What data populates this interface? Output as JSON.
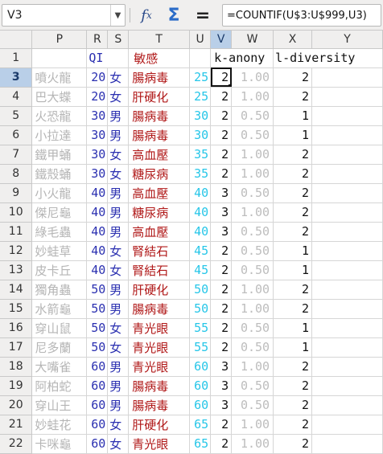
{
  "formula_bar": {
    "name_box": "V3",
    "name_box_dropdown_icon": "chevron-down-icon",
    "function_wizard_icon": "fx-icon",
    "sum_icon": "sigma-icon",
    "equals_icon": "equals-icon",
    "formula": "=COUNTIF(U$3:U$999,U3)"
  },
  "columns": [
    "P",
    "R",
    "S",
    "T",
    "U",
    "V",
    "W",
    "X",
    "Y"
  ],
  "selected_column": "V",
  "header_row": {
    "row": "1",
    "qi": "QI",
    "sensitive": "敏感",
    "k": "k-anony",
    "l": "l-diversity"
  },
  "selected_row": "3",
  "rows": [
    {
      "row": "3",
      "P": "噴火龍",
      "R": "20",
      "S": "女",
      "T": "腸病毒",
      "U": "25",
      "V": "2",
      "W": "1.00",
      "X": "2"
    },
    {
      "row": "4",
      "P": "巴大蝶",
      "R": "20",
      "S": "女",
      "T": "肝硬化",
      "U": "25",
      "V": "2",
      "W": "1.00",
      "X": "2"
    },
    {
      "row": "5",
      "P": "火恐龍",
      "R": "30",
      "S": "男",
      "T": "腸病毒",
      "U": "30",
      "V": "2",
      "W": "0.50",
      "X": "1"
    },
    {
      "row": "6",
      "P": "小拉達",
      "R": "30",
      "S": "男",
      "T": "腸病毒",
      "U": "30",
      "V": "2",
      "W": "0.50",
      "X": "1"
    },
    {
      "row": "7",
      "P": "鐵甲蛹",
      "R": "30",
      "S": "女",
      "T": "高血壓",
      "U": "35",
      "V": "2",
      "W": "1.00",
      "X": "2"
    },
    {
      "row": "8",
      "P": "鐵殼蛹",
      "R": "30",
      "S": "女",
      "T": "糖尿病",
      "U": "35",
      "V": "2",
      "W": "1.00",
      "X": "2"
    },
    {
      "row": "9",
      "P": "小火龍",
      "R": "40",
      "S": "男",
      "T": "高血壓",
      "U": "40",
      "V": "3",
      "W": "0.50",
      "X": "2"
    },
    {
      "row": "10",
      "P": "傑尼龜",
      "R": "40",
      "S": "男",
      "T": "糖尿病",
      "U": "40",
      "V": "3",
      "W": "1.00",
      "X": "2"
    },
    {
      "row": "11",
      "P": "綠毛蟲",
      "R": "40",
      "S": "男",
      "T": "高血壓",
      "U": "40",
      "V": "3",
      "W": "0.50",
      "X": "2"
    },
    {
      "row": "12",
      "P": "妙蛙草",
      "R": "40",
      "S": "女",
      "T": "腎結石",
      "U": "45",
      "V": "2",
      "W": "0.50",
      "X": "1"
    },
    {
      "row": "13",
      "P": "皮卡丘",
      "R": "40",
      "S": "女",
      "T": "腎結石",
      "U": "45",
      "V": "2",
      "W": "0.50",
      "X": "1"
    },
    {
      "row": "14",
      "P": "獨角蟲",
      "R": "50",
      "S": "男",
      "T": "肝硬化",
      "U": "50",
      "V": "2",
      "W": "1.00",
      "X": "2"
    },
    {
      "row": "15",
      "P": "水箭龜",
      "R": "50",
      "S": "男",
      "T": "腸病毒",
      "U": "50",
      "V": "2",
      "W": "1.00",
      "X": "2"
    },
    {
      "row": "16",
      "P": "穿山鼠",
      "R": "50",
      "S": "女",
      "T": "青光眼",
      "U": "55",
      "V": "2",
      "W": "0.50",
      "X": "1"
    },
    {
      "row": "17",
      "P": "尼多蘭",
      "R": "50",
      "S": "女",
      "T": "青光眼",
      "U": "55",
      "V": "2",
      "W": "0.50",
      "X": "1"
    },
    {
      "row": "18",
      "P": "大嘴雀",
      "R": "60",
      "S": "男",
      "T": "青光眼",
      "U": "60",
      "V": "3",
      "W": "1.00",
      "X": "2"
    },
    {
      "row": "19",
      "P": "阿柏蛇",
      "R": "60",
      "S": "男",
      "T": "腸病毒",
      "U": "60",
      "V": "3",
      "W": "0.50",
      "X": "2"
    },
    {
      "row": "20",
      "P": "穿山王",
      "R": "60",
      "S": "男",
      "T": "腸病毒",
      "U": "60",
      "V": "3",
      "W": "0.50",
      "X": "2"
    },
    {
      "row": "21",
      "P": "妙蛙花",
      "R": "60",
      "S": "女",
      "T": "肝硬化",
      "U": "65",
      "V": "2",
      "W": "1.00",
      "X": "2"
    },
    {
      "row": "22",
      "P": "卡咪龜",
      "R": "60",
      "S": "女",
      "T": "青光眼",
      "U": "65",
      "V": "2",
      "W": "1.00",
      "X": "2"
    }
  ]
}
